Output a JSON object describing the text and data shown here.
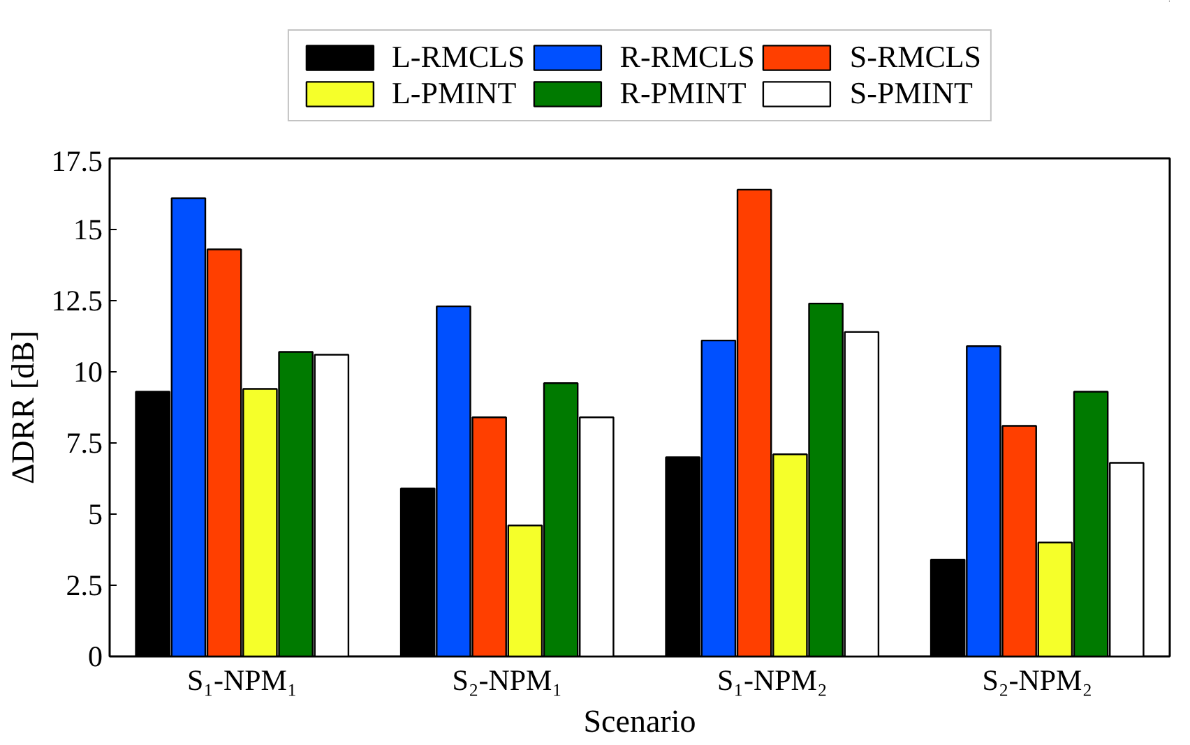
{
  "chart_data": {
    "type": "bar",
    "xlabel": "Scenario",
    "ylabel": "ΔDRR [dB]",
    "categories": [
      "S₁-NPM₁",
      "S₂-NPM₁",
      "S₁-NPM₂",
      "S₂-NPM₂"
    ],
    "series": [
      {
        "name": "L-RMCLS",
        "color": "#000000",
        "values": [
          9.3,
          5.9,
          7.0,
          3.4
        ]
      },
      {
        "name": "R-RMCLS",
        "color": "#0050ff",
        "values": [
          16.1,
          12.3,
          11.1,
          10.9
        ]
      },
      {
        "name": "S-RMCLS",
        "color": "#ff3f00",
        "values": [
          14.3,
          8.4,
          16.4,
          8.1
        ]
      },
      {
        "name": "L-PMINT",
        "color": "#f5ff2a",
        "values": [
          9.4,
          4.6,
          7.1,
          4.0
        ]
      },
      {
        "name": "R-PMINT",
        "color": "#007a00",
        "values": [
          10.7,
          9.6,
          12.4,
          9.3
        ]
      },
      {
        "name": "S-PMINT",
        "color": "#ffffff",
        "values": [
          10.6,
          8.4,
          11.4,
          6.8
        ]
      }
    ],
    "ylim": [
      0,
      17.5
    ],
    "yticks": [
      0,
      2.5,
      5,
      7.5,
      10,
      12.5,
      15,
      17.5
    ],
    "grid": false,
    "legend": "top"
  }
}
